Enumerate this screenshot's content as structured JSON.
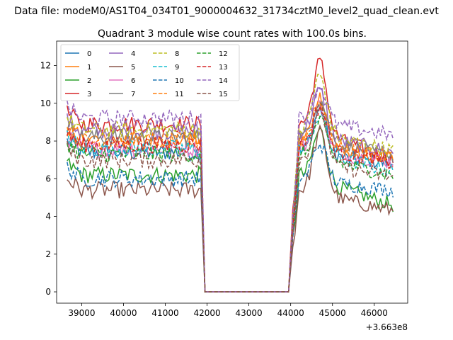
{
  "chart_data": {
    "type": "line",
    "suptitle": "Data file: modeM0/AS1T04_034T01_9000004632_31734cztM0_level2_quad_clean.evt",
    "title": "Quadrant 3 module wise count rates with 100.0s bins.",
    "xlabel": "",
    "ylabel": "",
    "x_offset_label": "+3.663e8",
    "xlim": [
      38400,
      46800
    ],
    "ylim": [
      -0.6,
      13.3
    ],
    "xticks": [
      39000,
      40000,
      41000,
      42000,
      43000,
      44000,
      45000,
      46000
    ],
    "yticks": [
      0,
      2,
      4,
      6,
      8,
      10,
      12
    ],
    "legend_position": "top-left",
    "segments": [
      {
        "x_start": 38650,
        "x_end": 41850,
        "kind": "active"
      },
      {
        "x_start": 41950,
        "x_end": 43950,
        "kind": "zero"
      },
      {
        "x_start": 44050,
        "x_end": 46450,
        "kind": "active"
      }
    ],
    "series": [
      {
        "name": "0",
        "color": "#1f77b4",
        "dash": "solid",
        "level": 7.4,
        "peak": 9.8,
        "end": 6.8
      },
      {
        "name": "1",
        "color": "#ff7f0e",
        "dash": "solid",
        "level": 8.1,
        "peak": 10.6,
        "end": 7.0
      },
      {
        "name": "2",
        "color": "#2ca02c",
        "dash": "solid",
        "level": 6.2,
        "peak": 8.9,
        "end": 4.6
      },
      {
        "name": "3",
        "color": "#d62728",
        "dash": "solid",
        "level": 8.9,
        "peak": 12.6,
        "end": 7.0
      },
      {
        "name": "4",
        "color": "#9467bd",
        "dash": "solid",
        "level": 8.5,
        "peak": 10.9,
        "end": 7.4
      },
      {
        "name": "5",
        "color": "#8c564b",
        "dash": "solid",
        "level": 5.4,
        "peak": 8.7,
        "end": 4.3
      },
      {
        "name": "6",
        "color": "#e377c2",
        "dash": "solid",
        "level": 7.6,
        "peak": 10.1,
        "end": 6.9
      },
      {
        "name": "7",
        "color": "#7f7f7f",
        "dash": "solid",
        "level": 8.2,
        "peak": 10.4,
        "end": 7.2
      },
      {
        "name": "8",
        "color": "#bcbd22",
        "dash": "dashed",
        "level": 8.6,
        "peak": 11.7,
        "end": 7.5
      },
      {
        "name": "9",
        "color": "#17becf",
        "dash": "dashed",
        "level": 7.6,
        "peak": 9.6,
        "end": 6.4
      },
      {
        "name": "10",
        "color": "#1f77b4",
        "dash": "dashed",
        "level": 6.0,
        "peak": 8.0,
        "end": 5.4
      },
      {
        "name": "11",
        "color": "#ff7f0e",
        "dash": "dashed",
        "level": 8.0,
        "peak": 10.3,
        "end": 7.1
      },
      {
        "name": "12",
        "color": "#2ca02c",
        "dash": "dashed",
        "level": 7.3,
        "peak": 9.3,
        "end": 6.2
      },
      {
        "name": "13",
        "color": "#d62728",
        "dash": "dashed",
        "level": 7.8,
        "peak": 10.0,
        "end": 6.8
      },
      {
        "name": "14",
        "color": "#9467bd",
        "dash": "dashed",
        "level": 9.2,
        "peak": 11.1,
        "end": 8.3
      },
      {
        "name": "15",
        "color": "#8c564b",
        "dash": "dashed",
        "level": 7.0,
        "peak": 9.9,
        "end": 6.1
      }
    ]
  }
}
